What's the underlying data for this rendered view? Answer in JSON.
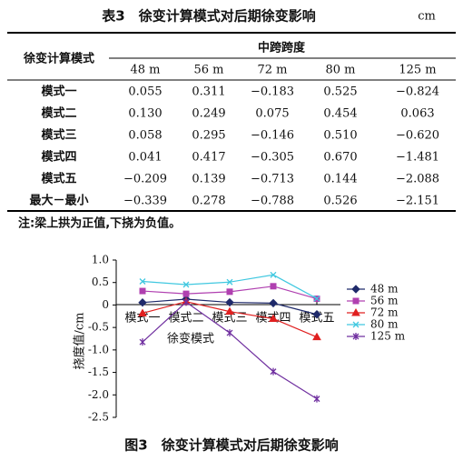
{
  "table": {
    "title": "表3　徐变计算模式对后期徐变影响",
    "unit": "cm",
    "row_header": "徐变计算模式",
    "group_header": "中跨跨度",
    "columns": [
      "48 m",
      "56 m",
      "72 m",
      "80 m",
      "125 m"
    ],
    "rows": [
      [
        "模式一",
        "0.055",
        "0.311",
        "−0.183",
        "0.525",
        "−0.824"
      ],
      [
        "模式二",
        "0.130",
        "0.249",
        "0.075",
        "0.454",
        "0.063"
      ],
      [
        "模式三",
        "0.058",
        "0.295",
        "−0.146",
        "0.510",
        "−0.620"
      ],
      [
        "模式四",
        "0.041",
        "0.417",
        "−0.305",
        "0.670",
        "−1.481"
      ],
      [
        "模式五",
        "−0.209",
        "0.139",
        "−0.713",
        "0.144",
        "−2.088"
      ],
      [
        "最大－最小",
        "−0.339",
        "0.278",
        "−0.788",
        "0.526",
        "−2.151"
      ]
    ],
    "note": "注:梁上拱为正值,下挠为负值。"
  },
  "chart_data": {
    "type": "line",
    "categories": [
      "模式一",
      "模式二",
      "模式三",
      "模式四",
      "模式五"
    ],
    "series": [
      {
        "name": "48 m",
        "color": "#1f2a6b",
        "values": [
          0.055,
          0.13,
          0.058,
          0.041,
          -0.209
        ]
      },
      {
        "name": "56 m",
        "color": "#b040b0",
        "values": [
          0.311,
          0.249,
          0.295,
          0.417,
          0.139
        ]
      },
      {
        "name": "72 m",
        "color": "#e02020",
        "values": [
          -0.183,
          0.075,
          -0.146,
          -0.305,
          -0.713
        ]
      },
      {
        "name": "80 m",
        "color": "#40c8e0",
        "values": [
          0.525,
          0.454,
          0.51,
          0.67,
          0.144
        ]
      },
      {
        "name": "125 m",
        "color": "#7030a0",
        "values": [
          -0.824,
          0.063,
          -0.62,
          -1.481,
          -2.088
        ]
      }
    ],
    "ylim": [
      -2.5,
      1.0
    ],
    "yticks": [
      {
        "value": 1.0,
        "label": "1.0"
      },
      0.5,
      0,
      -0.5,
      {
        "value": -1.0,
        "label": "-1.0"
      },
      -1.5,
      {
        "value": -2.0,
        "label": "-2.0"
      },
      -2.5
    ],
    "y_label": "挠度值/cm",
    "x_label": "徐变模式",
    "caption": "图3　徐变计算模式对后期徐变影响"
  }
}
